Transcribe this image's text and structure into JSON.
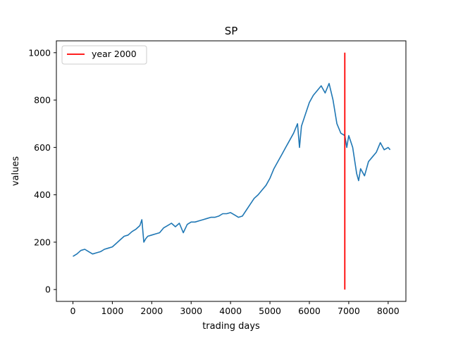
{
  "chart_data": {
    "type": "line",
    "title": "SP",
    "xlabel": "trading days",
    "ylabel": "values",
    "xlim": [
      -420,
      8450
    ],
    "ylim": [
      -50,
      1050
    ],
    "xticks": [
      0,
      1000,
      2000,
      3000,
      4000,
      5000,
      6000,
      7000,
      8000
    ],
    "yticks": [
      0,
      200,
      400,
      600,
      800,
      1000
    ],
    "grid": false,
    "legend_position": "top-left",
    "series": [
      {
        "color": "#1f77b4",
        "x": [
          0,
          100,
          200,
          300,
          400,
          500,
          600,
          700,
          800,
          900,
          1000,
          1100,
          1200,
          1300,
          1400,
          1500,
          1600,
          1700,
          1750,
          1800,
          1850,
          1900,
          2000,
          2100,
          2200,
          2300,
          2400,
          2500,
          2600,
          2700,
          2800,
          2900,
          3000,
          3100,
          3200,
          3300,
          3400,
          3500,
          3600,
          3700,
          3800,
          3900,
          4000,
          4100,
          4200,
          4300,
          4400,
          4500,
          4600,
          4700,
          4800,
          4900,
          5000,
          5100,
          5200,
          5300,
          5400,
          5500,
          5600,
          5700,
          5750,
          5800,
          5900,
          6000,
          6100,
          6200,
          6300,
          6400,
          6500,
          6600,
          6700,
          6800,
          6900,
          6950,
          7000,
          7100,
          7200,
          7250,
          7300,
          7400,
          7500,
          7600,
          7700,
          7800,
          7900,
          8000,
          8050
        ],
        "y": [
          140,
          150,
          165,
          170,
          160,
          150,
          155,
          160,
          170,
          175,
          180,
          195,
          210,
          225,
          230,
          245,
          255,
          270,
          295,
          200,
          215,
          225,
          230,
          235,
          240,
          260,
          270,
          280,
          265,
          280,
          240,
          275,
          285,
          285,
          290,
          295,
          300,
          305,
          305,
          310,
          320,
          320,
          325,
          315,
          305,
          310,
          335,
          360,
          385,
          400,
          420,
          440,
          470,
          510,
          540,
          570,
          600,
          630,
          660,
          700,
          600,
          690,
          740,
          790,
          820,
          840,
          860,
          830,
          870,
          800,
          700,
          660,
          650,
          600,
          650,
          600,
          490,
          460,
          510,
          480,
          540,
          560,
          580,
          620,
          590,
          600,
          590
        ]
      },
      {
        "name": "year 2000",
        "color": "#ff0000",
        "x": [
          6900,
          6900
        ],
        "y": [
          0,
          1000
        ]
      }
    ]
  }
}
